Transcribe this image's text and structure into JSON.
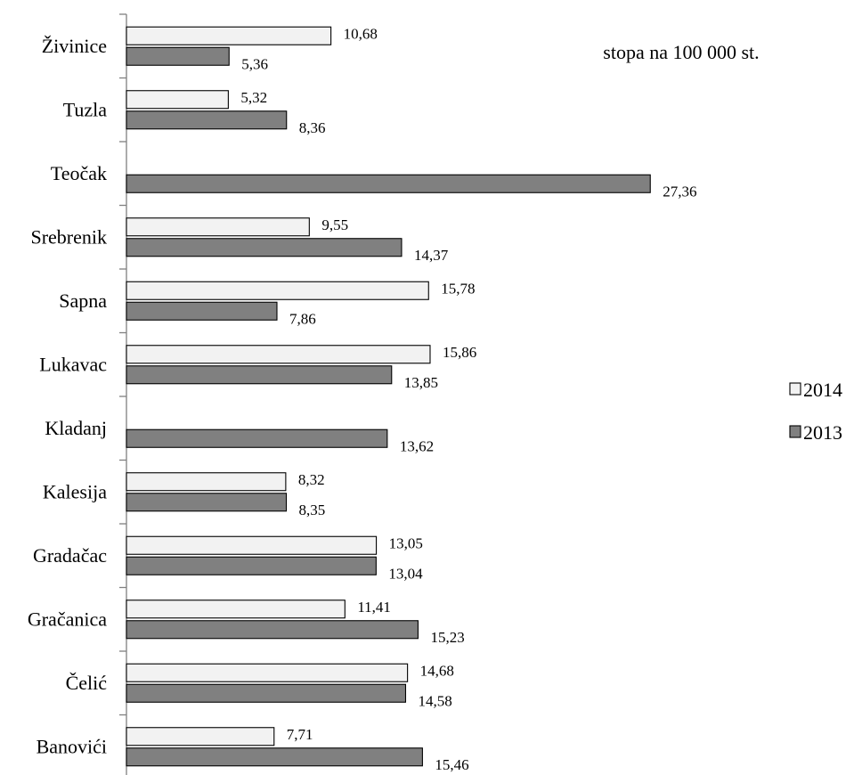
{
  "chart_data": {
    "type": "bar",
    "orientation": "horizontal",
    "unit_note": "stopa na 100 000 st.",
    "categories": [
      "Živinice",
      "Tuzla",
      "Teočak",
      "Srebrenik",
      "Sapna",
      "Lukavac",
      "Kladanj",
      "Kalesija",
      "Gradačac",
      "Gračanica",
      "Čelić",
      "Banovići"
    ],
    "series": [
      {
        "name": "2014",
        "color": "#f2f2f2",
        "values": [
          10.68,
          5.32,
          null,
          9.55,
          15.78,
          15.86,
          null,
          8.32,
          13.05,
          11.41,
          14.68,
          7.71
        ],
        "labels": [
          "10,68",
          "5,32",
          "",
          "9,55",
          "15,78",
          "15,86",
          "",
          "8,32",
          "13,05",
          "11,41",
          "14,68",
          "7,71"
        ]
      },
      {
        "name": "2013",
        "color": "#808080",
        "values": [
          5.36,
          8.36,
          27.36,
          14.37,
          7.86,
          13.85,
          13.62,
          8.35,
          13.04,
          15.23,
          14.58,
          15.46
        ],
        "labels": [
          "5,36",
          "8,36",
          "27,36",
          "14,37",
          "7,86",
          "13,85",
          "13,62",
          "8,35",
          "13,04",
          "15,23",
          "14,58",
          "15,46"
        ]
      }
    ],
    "xlim": [
      0,
      30
    ],
    "grid": false,
    "legend_position": "right"
  }
}
